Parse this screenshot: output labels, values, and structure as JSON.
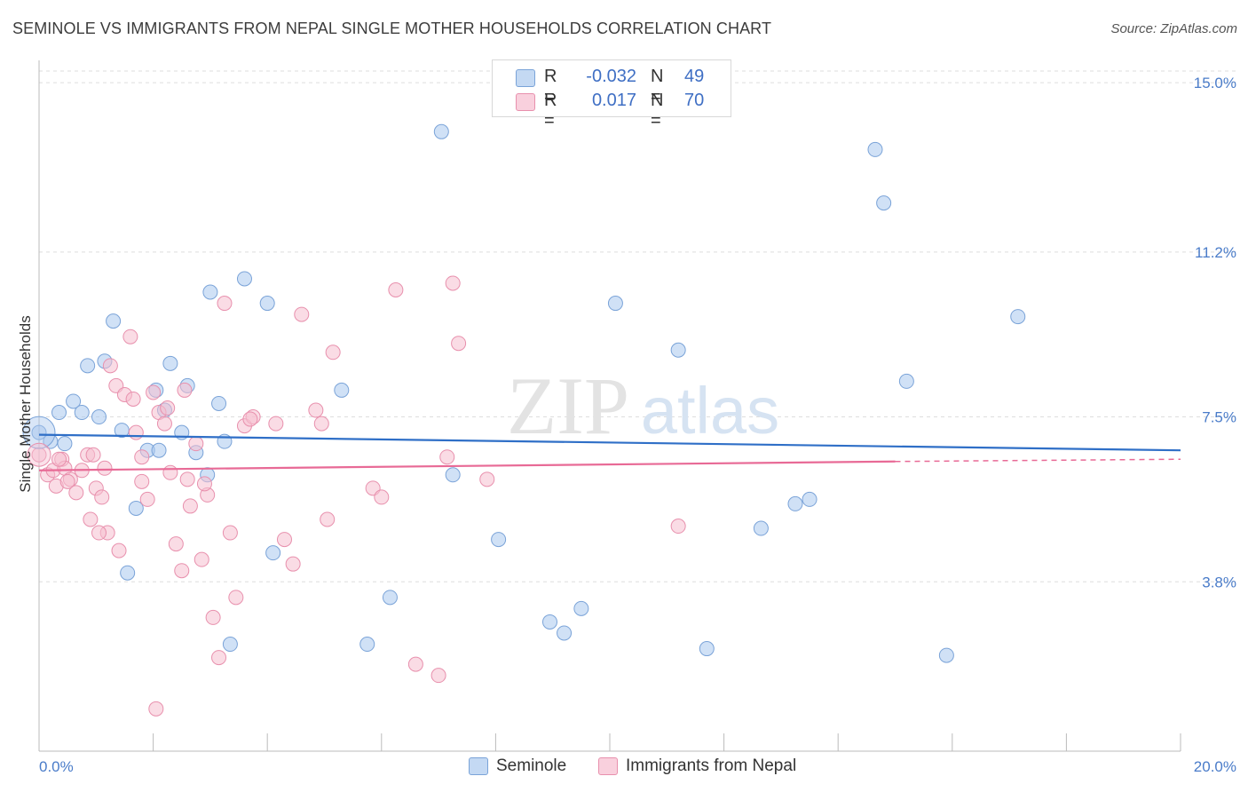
{
  "title": "SEMINOLE VS IMMIGRANTS FROM NEPAL SINGLE MOTHER HOUSEHOLDS CORRELATION CHART",
  "source": "Source: ZipAtlas.com",
  "watermark": {
    "zip": "ZIP",
    "atlas": "atlas"
  },
  "colors": {
    "seminole_fill": "#aac8ee",
    "seminole_stroke": "#7aa3d8",
    "seminole_line": "#2f6fc7",
    "nepal_fill": "#f6bfd0",
    "nepal_stroke": "#e890ad",
    "nepal_line": "#e86a96",
    "tick_text": "#4a7cc9",
    "grid": "#dddddd"
  },
  "legend": {
    "rows": [
      {
        "r_label": "R =",
        "r_value": "-0.032",
        "n_label": "N =",
        "n_value": "49"
      },
      {
        "r_label": "R =",
        "r_value": "0.017",
        "n_label": "N =",
        "n_value": "70"
      }
    ]
  },
  "chart_data": {
    "type": "scatter",
    "title": "SEMINOLE VS IMMIGRANTS FROM NEPAL SINGLE MOTHER HOUSEHOLDS CORRELATION CHART",
    "xlabel": "",
    "ylabel": "Single Mother Households",
    "xlim": [
      0,
      20
    ],
    "ylim": [
      0,
      15.5
    ],
    "x_tick_labels": [
      "0.0%",
      "20.0%"
    ],
    "y_ticks": [
      3.8,
      7.5,
      11.2,
      15.0
    ],
    "y_tick_labels": [
      "3.8%",
      "7.5%",
      "11.2%",
      "15.0%"
    ],
    "series": [
      {
        "name": "Seminole",
        "r": -0.032,
        "n": 49,
        "trend": {
          "x0": 0,
          "y0": 7.1,
          "x1": 20,
          "y1": 6.75
        },
        "points": [
          [
            0.0,
            7.15
          ],
          [
            0.2,
            6.95
          ],
          [
            0.45,
            6.9
          ],
          [
            0.35,
            7.6
          ],
          [
            0.6,
            7.85
          ],
          [
            0.75,
            7.6
          ],
          [
            1.05,
            7.5
          ],
          [
            0.85,
            8.65
          ],
          [
            1.15,
            8.75
          ],
          [
            1.3,
            9.65
          ],
          [
            1.45,
            7.2
          ],
          [
            1.55,
            4.0
          ],
          [
            1.7,
            5.45
          ],
          [
            1.9,
            6.75
          ],
          [
            2.05,
            8.1
          ],
          [
            2.1,
            6.75
          ],
          [
            2.2,
            7.65
          ],
          [
            2.3,
            8.7
          ],
          [
            2.5,
            7.15
          ],
          [
            2.6,
            8.2
          ],
          [
            2.75,
            6.7
          ],
          [
            2.95,
            6.2
          ],
          [
            3.0,
            10.3
          ],
          [
            3.15,
            7.8
          ],
          [
            3.25,
            6.95
          ],
          [
            3.35,
            2.4
          ],
          [
            3.6,
            10.6
          ],
          [
            4.0,
            10.05
          ],
          [
            4.1,
            4.45
          ],
          [
            5.3,
            8.1
          ],
          [
            5.75,
            2.4
          ],
          [
            6.15,
            3.45
          ],
          [
            7.05,
            13.9
          ],
          [
            7.25,
            6.2
          ],
          [
            8.05,
            4.75
          ],
          [
            8.95,
            2.9
          ],
          [
            9.2,
            2.65
          ],
          [
            9.5,
            3.2
          ],
          [
            10.1,
            10.05
          ],
          [
            11.2,
            9.0
          ],
          [
            11.7,
            2.3
          ],
          [
            12.65,
            5.0
          ],
          [
            13.25,
            5.55
          ],
          [
            13.5,
            5.65
          ],
          [
            14.65,
            13.5
          ],
          [
            14.8,
            12.3
          ],
          [
            15.2,
            8.3
          ],
          [
            15.9,
            2.15
          ],
          [
            17.15,
            9.75
          ]
        ]
      },
      {
        "name": "Immigrants from Nepal",
        "r": 0.017,
        "n": 70,
        "trend": {
          "x0": 0,
          "y0": 6.3,
          "x1": 15.0,
          "y1": 6.5
        },
        "trend_dashed": {
          "x0": 15.0,
          "y0": 6.5,
          "x1": 20,
          "y1": 6.55
        },
        "points": [
          [
            0.0,
            6.65
          ],
          [
            0.15,
            6.2
          ],
          [
            0.25,
            6.3
          ],
          [
            0.3,
            5.95
          ],
          [
            0.4,
            6.55
          ],
          [
            0.45,
            6.35
          ],
          [
            0.55,
            6.1
          ],
          [
            0.65,
            5.8
          ],
          [
            0.75,
            6.3
          ],
          [
            0.85,
            6.65
          ],
          [
            0.9,
            5.2
          ],
          [
            1.0,
            5.9
          ],
          [
            1.1,
            5.7
          ],
          [
            1.2,
            4.9
          ],
          [
            1.25,
            8.65
          ],
          [
            1.35,
            8.2
          ],
          [
            1.4,
            4.5
          ],
          [
            1.5,
            8.0
          ],
          [
            1.6,
            9.3
          ],
          [
            1.7,
            7.15
          ],
          [
            1.8,
            6.05
          ],
          [
            1.9,
            5.65
          ],
          [
            2.0,
            8.05
          ],
          [
            2.1,
            7.6
          ],
          [
            2.2,
            7.35
          ],
          [
            2.3,
            6.25
          ],
          [
            2.4,
            4.65
          ],
          [
            2.5,
            4.05
          ],
          [
            2.55,
            8.1
          ],
          [
            2.65,
            5.5
          ],
          [
            2.75,
            6.9
          ],
          [
            2.85,
            4.3
          ],
          [
            2.95,
            5.75
          ],
          [
            3.05,
            3.0
          ],
          [
            3.15,
            2.1
          ],
          [
            3.25,
            10.05
          ],
          [
            3.35,
            4.9
          ],
          [
            3.45,
            3.45
          ],
          [
            3.6,
            7.3
          ],
          [
            3.75,
            7.5
          ],
          [
            4.15,
            7.35
          ],
          [
            4.3,
            4.75
          ],
          [
            4.45,
            4.2
          ],
          [
            4.6,
            9.8
          ],
          [
            4.85,
            7.65
          ],
          [
            4.95,
            7.35
          ],
          [
            5.05,
            5.2
          ],
          [
            5.15,
            8.95
          ],
          [
            5.85,
            5.9
          ],
          [
            6.0,
            5.7
          ],
          [
            6.25,
            10.35
          ],
          [
            6.6,
            1.95
          ],
          [
            7.0,
            1.7
          ],
          [
            7.15,
            6.6
          ],
          [
            7.25,
            10.5
          ],
          [
            7.35,
            9.15
          ],
          [
            7.85,
            6.1
          ],
          [
            11.2,
            5.05
          ],
          [
            2.05,
            0.95
          ],
          [
            1.8,
            6.6
          ],
          [
            0.95,
            6.65
          ],
          [
            2.6,
            6.1
          ],
          [
            1.05,
            4.9
          ],
          [
            0.35,
            6.55
          ],
          [
            1.65,
            7.9
          ],
          [
            2.9,
            6.0
          ],
          [
            3.7,
            7.45
          ],
          [
            0.5,
            6.05
          ],
          [
            1.15,
            6.35
          ],
          [
            2.25,
            7.7
          ]
        ]
      }
    ]
  }
}
